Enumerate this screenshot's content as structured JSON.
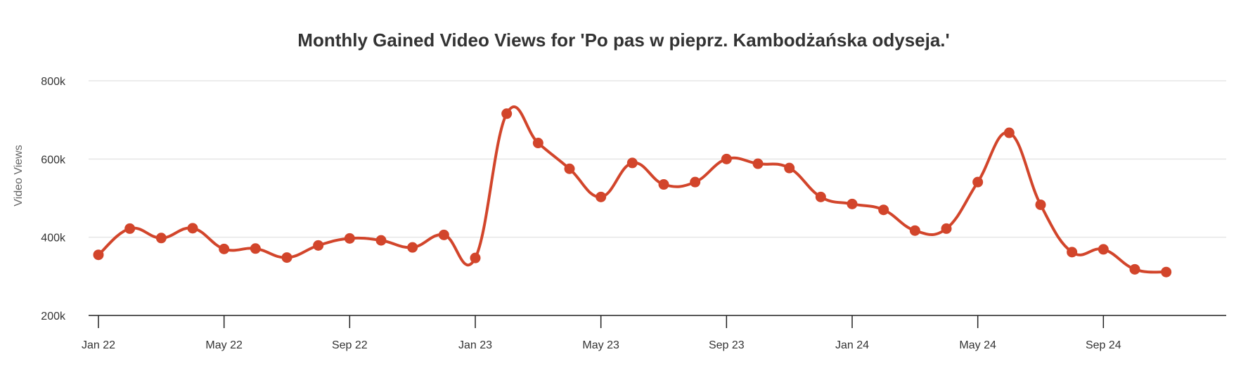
{
  "chart_data": {
    "type": "line",
    "title": "Monthly Gained Video Views for 'Po pas w pieprz. Kambodżańska odyseja.'",
    "xlabel": "",
    "ylabel": "Video Views",
    "ylim": [
      200000,
      800000
    ],
    "yticks": [
      200000,
      400000,
      600000,
      800000
    ],
    "ytick_labels": [
      "200k",
      "400k",
      "600k",
      "800k"
    ],
    "xtick_labels": [
      "Jan 22",
      "May 22",
      "Sep 22",
      "Jan 23",
      "May 23",
      "Sep 23",
      "Jan 24",
      "May 24",
      "Sep 24"
    ],
    "xtick_index": [
      0,
      4,
      8,
      12,
      16,
      20,
      24,
      28,
      32
    ],
    "grid": true,
    "legend": "none",
    "line_color": "#d2452b",
    "x": [
      "Jan 22",
      "Feb 22",
      "Mar 22",
      "Apr 22",
      "May 22",
      "Jun 22",
      "Jul 22",
      "Aug 22",
      "Sep 22",
      "Oct 22",
      "Nov 22",
      "Dec 22",
      "Jan 23",
      "Feb 23",
      "Mar 23",
      "Apr 23",
      "May 23",
      "Jun 23",
      "Jul 23",
      "Aug 23",
      "Sep 23",
      "Oct 23",
      "Nov 23",
      "Dec 23",
      "Jan 24",
      "Feb 24",
      "Mar 24",
      "Apr 24",
      "May 24",
      "Jun 24",
      "Jul 24",
      "Aug 24",
      "Sep 24",
      "Oct 24",
      "Nov 24"
    ],
    "series": [
      {
        "values": [
          355000,
          422000,
          398000,
          423000,
          370000,
          371000,
          348000,
          379000,
          397000,
          392000,
          374000,
          406000,
          347000,
          716000,
          641000,
          575000,
          503000,
          590000,
          535000,
          541000,
          600000,
          588000,
          577000,
          503000,
          485000,
          470000,
          417000,
          422000,
          541000,
          667000,
          483000,
          362000,
          369000,
          318000,
          311000
        ]
      }
    ]
  }
}
